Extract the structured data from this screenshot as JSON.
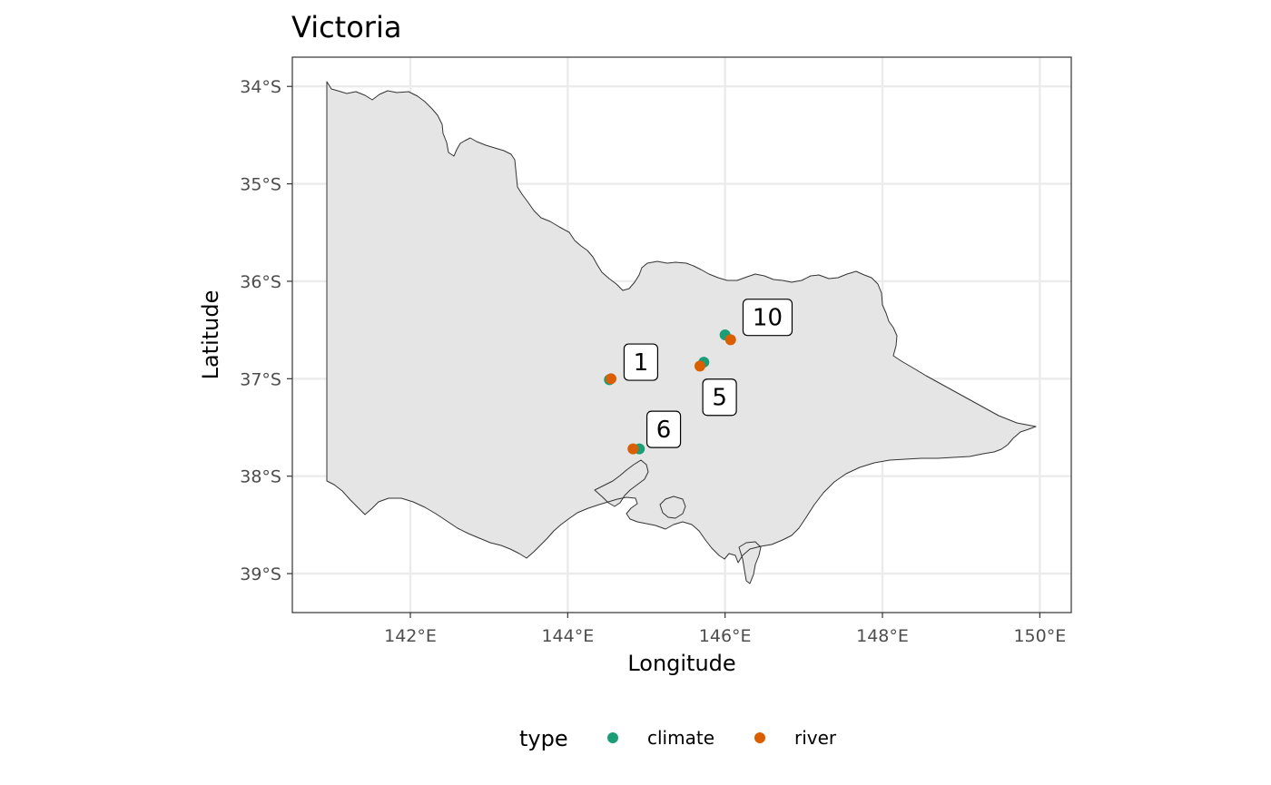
{
  "map": {
    "title": "Victoria",
    "xlabel": "Longitude",
    "ylabel": "Latitude",
    "x_ticks": [
      {
        "value": 142,
        "label": "142°E"
      },
      {
        "value": 144,
        "label": "144°E"
      },
      {
        "value": 146,
        "label": "146°E"
      },
      {
        "value": 148,
        "label": "148°E"
      },
      {
        "value": 150,
        "label": "150°E"
      }
    ],
    "y_ticks": [
      {
        "value": -34,
        "label": "34°S"
      },
      {
        "value": -35,
        "label": "35°S"
      },
      {
        "value": -36,
        "label": "36°S"
      },
      {
        "value": -37,
        "label": "37°S"
      },
      {
        "value": -38,
        "label": "38°S"
      },
      {
        "value": -39,
        "label": "39°S"
      }
    ],
    "xlim": [
      140.5,
      150.4
    ],
    "ylim": [
      -39.4,
      -33.7
    ],
    "grid": true,
    "region_fill": "#e5e5e5",
    "region_border": "#333333"
  },
  "chart_data": {
    "type": "scatter",
    "title": "Victoria",
    "xlabel": "Longitude",
    "ylabel": "Latitude",
    "xlim": [
      140.5,
      150.4
    ],
    "ylim": [
      -39.4,
      -33.7
    ],
    "series": [
      {
        "name": "climate",
        "color": "#1b9e77",
        "points": [
          {
            "x": 144.53,
            "y": -37.01
          },
          {
            "x": 145.73,
            "y": -36.83
          },
          {
            "x": 146.0,
            "y": -36.55
          },
          {
            "x": 144.91,
            "y": -37.72
          }
        ]
      },
      {
        "name": "river",
        "color": "#d95f02",
        "points": [
          {
            "x": 144.55,
            "y": -37.0
          },
          {
            "x": 145.68,
            "y": -36.87
          },
          {
            "x": 146.07,
            "y": -36.6
          },
          {
            "x": 144.83,
            "y": -37.72
          }
        ]
      }
    ],
    "labels": [
      {
        "text": "1",
        "x": 144.93,
        "y": -36.83
      },
      {
        "text": "5",
        "x": 145.93,
        "y": -37.19
      },
      {
        "text": "10",
        "x": 146.54,
        "y": -36.37
      },
      {
        "text": "6",
        "x": 145.22,
        "y": -37.52
      }
    ]
  },
  "legend": {
    "title": "type",
    "items": [
      {
        "label": "climate",
        "color": "#1b9e77"
      },
      {
        "label": "river",
        "color": "#d95f02"
      }
    ]
  }
}
